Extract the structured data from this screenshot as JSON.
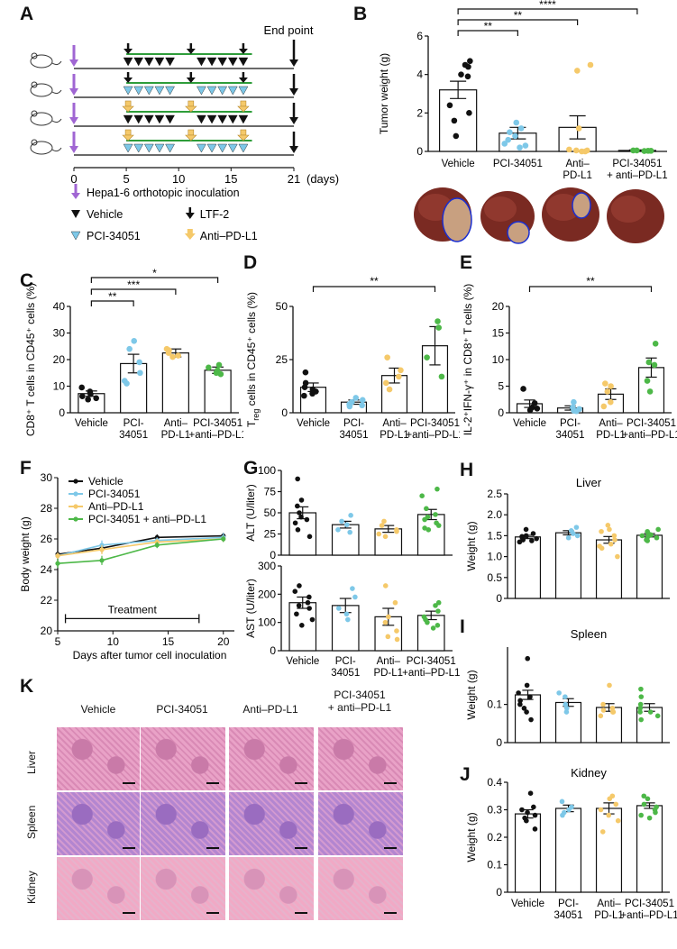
{
  "panel_labels": {
    "A": "A",
    "B": "B",
    "C": "C",
    "D": "D",
    "E": "E",
    "F": "F",
    "G": "G",
    "H": "H",
    "I": "I",
    "J": "J",
    "K": "K"
  },
  "colors": {
    "vehicle": "#111111",
    "pci": "#7ec8e8",
    "antipdl1": "#f5c96a",
    "combo": "#4db848",
    "bar": "#ffffff",
    "line_green": "#2e9d3a",
    "inoc": "#a066d3",
    "ltf": "#111111",
    "tumor_outline": "#1a2ed0"
  },
  "schematic": {
    "end_point": "End point",
    "days_label": "(days)",
    "ticks": [
      "0",
      "5",
      "10",
      "15",
      "21"
    ],
    "legend": {
      "inoculation": "Hepa1-6 orthotopic inoculation",
      "vehicle": "Vehicle",
      "ltf2": "LTF-2",
      "pci": "PCI-34051",
      "antipdl1": "Anti–PD-L1"
    }
  },
  "chart_data": [
    {
      "id": "B",
      "type": "bar",
      "ylabel": "Tumor weight  (g)",
      "categories": [
        "Vehicle",
        "PCI-34051",
        "Anti–\nPD-L1",
        "PCI-34051\n+ anti–PD-L1"
      ],
      "ylim": [
        0,
        6
      ],
      "yticks": [
        "0",
        "2",
        "4",
        "6"
      ],
      "means": [
        3.2,
        0.95,
        1.25,
        0.05
      ],
      "sem": [
        0.45,
        0.3,
        0.6,
        0.03
      ],
      "points": [
        [
          4.7,
          4.5,
          4.4,
          4.0,
          3.9,
          2.4,
          2.0,
          1.6,
          0.8
        ],
        [
          1.5,
          1.2,
          1.0,
          0.8,
          0.6,
          0.4,
          0.3,
          0.2
        ],
        [
          4.5,
          4.2,
          1.2,
          0.1,
          0.05,
          0.05,
          0.0,
          0.0
        ],
        [
          0.05,
          0.05,
          0.03,
          0.03,
          0.02
        ]
      ],
      "significance": [
        {
          "from": 0,
          "to": 1,
          "label": "**"
        },
        {
          "from": 0,
          "to": 2,
          "label": "**"
        },
        {
          "from": 0,
          "to": 3,
          "label": "****"
        }
      ]
    },
    {
      "id": "C",
      "type": "bar",
      "ylabel": "CD8⁺ T cells in CD45⁺ cells (%)",
      "categories": [
        "Vehicle",
        "PCI-\n34051",
        "Anti–\nPD-L1",
        "PCI-34051\n+anti–PD-L1"
      ],
      "ylim": [
        0,
        40
      ],
      "yticks": [
        "0",
        "10",
        "20",
        "30",
        "40"
      ],
      "means": [
        7.2,
        18.5,
        22.5,
        16.0
      ],
      "sem": [
        1.0,
        3.5,
        1.5,
        1.2
      ],
      "points": [
        [
          9.5,
          8.0,
          7.0,
          6.2,
          5.5,
          5.0
        ],
        [
          27,
          24,
          19,
          15,
          12,
          11
        ],
        [
          24,
          23.5,
          22.5,
          21.5,
          21
        ],
        [
          18,
          17,
          16,
          15,
          14.5
        ]
      ],
      "significance": [
        {
          "from": 0,
          "to": 1,
          "label": "**"
        },
        {
          "from": 0,
          "to": 2,
          "label": "***"
        },
        {
          "from": 0,
          "to": 3,
          "label": "*"
        }
      ]
    },
    {
      "id": "D",
      "type": "bar",
      "ylabel_main": "T",
      "ylabel_sub": "reg",
      "ylabel_rest": " cells in CD45⁺ cells (%)",
      "categories": [
        "Vehicle",
        "PCI-\n34051",
        "Anti–\nPD-L1",
        "PCI-34051\n+anti–PD-L1"
      ],
      "ylim": [
        0,
        50
      ],
      "yticks": [
        "0",
        "25",
        "50"
      ],
      "means": [
        12.0,
        5.0,
        17.5,
        31.5
      ],
      "sem": [
        2.0,
        1.0,
        3.5,
        9.0
      ],
      "points": [
        [
          19,
          14,
          12,
          11,
          10,
          9,
          8
        ],
        [
          7,
          6,
          5,
          4,
          3.5,
          3
        ],
        [
          26,
          20,
          17,
          14,
          11
        ],
        [
          43,
          40,
          26,
          17
        ]
      ],
      "significance": [
        {
          "from": 0,
          "to": 3,
          "label": "**"
        }
      ]
    },
    {
      "id": "E",
      "type": "bar",
      "ylabel": "IL-2⁺IFN-γ⁺ in CD8⁺ T cells (%)",
      "categories": [
        "Vehicle",
        "PCI-\n34051",
        "Anti–\nPD-L1",
        "PCI-34051\n+anti–PD-L1"
      ],
      "ylim": [
        0,
        20
      ],
      "yticks": [
        "0",
        "5",
        "10",
        "15",
        "20"
      ],
      "means": [
        1.7,
        0.9,
        3.5,
        8.5
      ],
      "sem": [
        0.7,
        0.4,
        1.0,
        1.8
      ],
      "points": [
        [
          4.5,
          1.8,
          1.0,
          0.8,
          0.5
        ],
        [
          2.0,
          1.0,
          0.7,
          0.4,
          0.3
        ],
        [
          5.5,
          5.0,
          4.0,
          2.0,
          1.2
        ],
        [
          13,
          9.5,
          9,
          6,
          4
        ]
      ],
      "significance": [
        {
          "from": 0,
          "to": 3,
          "label": "**"
        }
      ]
    },
    {
      "id": "F",
      "type": "line",
      "ylabel": "Body weight (g)",
      "xlabel": "Days after tumor cell inoculation",
      "xlim": [
        5,
        21
      ],
      "xticks": [
        "5",
        "10",
        "15",
        "20"
      ],
      "ylim": [
        20,
        30
      ],
      "yticks": [
        "20",
        "22",
        "24",
        "26",
        "28",
        "30"
      ],
      "annotation": "Treatment",
      "series": [
        {
          "name": "Vehicle",
          "x": [
            5,
            9,
            14,
            20
          ],
          "y": [
            25.0,
            25.4,
            26.1,
            26.2
          ],
          "sem": [
            0.2,
            0.3,
            0.2,
            0.2
          ]
        },
        {
          "name": "PCI-34051",
          "x": [
            5,
            9,
            14,
            20
          ],
          "y": [
            24.9,
            25.6,
            25.9,
            26.1
          ],
          "sem": [
            0.2,
            0.3,
            0.2,
            0.3
          ]
        },
        {
          "name": "Anti–PD-L1",
          "x": [
            5,
            9,
            14,
            20
          ],
          "y": [
            24.9,
            25.3,
            25.8,
            26.0
          ],
          "sem": [
            0.2,
            0.3,
            0.2,
            0.2
          ]
        },
        {
          "name": "PCI-34051 + anti–PD-L1",
          "x": [
            5,
            9,
            14,
            20
          ],
          "y": [
            24.4,
            24.6,
            25.6,
            26.0
          ],
          "sem": [
            0.3,
            0.3,
            0.2,
            0.2
          ]
        }
      ]
    },
    {
      "id": "G1",
      "type": "bar",
      "ylabel": "ALT  (U/liter)",
      "categories": [
        "Vehicle",
        "PCI-\n34051",
        "Anti–\nPD-L1",
        "PCI-34051\n+anti–PD-L1"
      ],
      "ylim": [
        0,
        100
      ],
      "yticks": [
        "0",
        "25",
        "50",
        "75",
        "100"
      ],
      "means": [
        50,
        36,
        31,
        48
      ],
      "sem": [
        7,
        4,
        4,
        6
      ],
      "points": [
        [
          90,
          65,
          58,
          50,
          45,
          42,
          38,
          30,
          22
        ],
        [
          47,
          40,
          36,
          30,
          27
        ],
        [
          40,
          35,
          30,
          28,
          25,
          22
        ],
        [
          78,
          70,
          55,
          48,
          45,
          42,
          38,
          35,
          32,
          30
        ]
      ],
      "significance": []
    },
    {
      "id": "G2",
      "type": "bar",
      "ylabel": "AST  (U/liter)",
      "categories": [
        "Vehicle",
        "PCI-\n34051",
        "Anti–\nPD-L1",
        "PCI-34051\n+anti–PD-L1"
      ],
      "ylim": [
        0,
        300
      ],
      "yticks": [
        "0",
        "100",
        "200",
        "300"
      ],
      "means": [
        170,
        160,
        120,
        125
      ],
      "sem": [
        20,
        25,
        30,
        15
      ],
      "points": [
        [
          230,
          210,
          190,
          170,
          160,
          150,
          130,
          110,
          90
        ],
        [
          220,
          190,
          150,
          130,
          110
        ],
        [
          230,
          170,
          120,
          100,
          70,
          50,
          40
        ],
        [
          170,
          160,
          140,
          120,
          110,
          100,
          90,
          80
        ]
      ],
      "significance": []
    },
    {
      "id": "H",
      "type": "bar",
      "title": "Liver",
      "ylabel": "Weight (g)",
      "categories": [
        "",
        "",
        "",
        ""
      ],
      "ylim": [
        0,
        2.5
      ],
      "yticks": [
        "0",
        "0.5",
        "1.0",
        "1.5",
        "2.0",
        "2.5"
      ],
      "means": [
        1.47,
        1.57,
        1.4,
        1.51
      ],
      "sem": [
        0.04,
        0.05,
        0.08,
        0.04
      ],
      "points": [
        [
          1.65,
          1.55,
          1.5,
          1.48,
          1.45,
          1.43,
          1.4,
          1.38,
          1.35
        ],
        [
          1.7,
          1.62,
          1.55,
          1.5,
          1.45
        ],
        [
          1.75,
          1.65,
          1.6,
          1.5,
          1.4,
          1.3,
          1.25,
          1.2,
          1.0
        ],
        [
          1.65,
          1.6,
          1.55,
          1.52,
          1.5,
          1.48,
          1.45,
          1.4,
          1.38
        ]
      ],
      "significance": []
    },
    {
      "id": "I",
      "type": "bar",
      "title": "Spleen",
      "ylabel": "Weight (g)",
      "categories": [
        "",
        "",
        "",
        ""
      ],
      "ylim": [
        0,
        0.25
      ],
      "yticks": [
        "0",
        "0.1"
      ],
      "means": [
        0.125,
        0.105,
        0.092,
        0.092
      ],
      "sem": [
        0.012,
        0.01,
        0.01,
        0.01
      ],
      "points": [
        [
          0.22,
          0.15,
          0.13,
          0.12,
          0.11,
          0.1,
          0.09,
          0.08,
          0.06
        ],
        [
          0.13,
          0.12,
          0.1,
          0.09,
          0.08
        ],
        [
          0.15,
          0.1,
          0.09,
          0.085,
          0.08,
          0.08,
          0.07
        ],
        [
          0.14,
          0.12,
          0.1,
          0.09,
          0.08,
          0.08,
          0.07,
          0.06
        ]
      ],
      "significance": []
    },
    {
      "id": "J",
      "type": "bar",
      "title": "Kidney",
      "ylabel": "Weight (g)",
      "categories": [
        "Vehicle",
        "PCI-\n34051",
        "Anti–\nPD-L1",
        "PCI-34051\n+anti–PD-L1"
      ],
      "ylim": [
        0,
        0.4
      ],
      "yticks": [
        "0",
        "0.1",
        "0.2",
        "0.3",
        "0.4"
      ],
      "means": [
        0.285,
        0.305,
        0.305,
        0.315
      ],
      "sem": [
        0.015,
        0.012,
        0.02,
        0.01
      ],
      "points": [
        [
          0.36,
          0.31,
          0.3,
          0.29,
          0.28,
          0.27,
          0.26,
          0.23
        ],
        [
          0.33,
          0.31,
          0.3,
          0.29,
          0.28
        ],
        [
          0.35,
          0.34,
          0.32,
          0.3,
          0.28,
          0.26,
          0.22
        ],
        [
          0.35,
          0.34,
          0.32,
          0.31,
          0.3,
          0.29,
          0.28,
          0.27
        ]
      ],
      "significance": []
    }
  ],
  "histology": {
    "columns": [
      "Vehicle",
      "PCI-34051",
      "Anti–PD-L1",
      "PCI-34051\n+ anti–PD-L1"
    ],
    "rows": [
      "Liver",
      "Spleen",
      "Kidney"
    ]
  }
}
